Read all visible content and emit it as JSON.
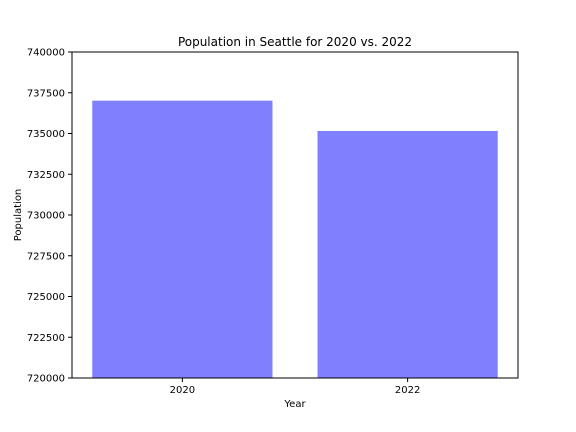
{
  "chart_data": {
    "type": "bar",
    "title": "Population in Seattle for 2020 vs. 2022",
    "xlabel": "Year",
    "ylabel": "Population",
    "categories": [
      "2020",
      "2022"
    ],
    "values": [
      737015,
      735157
    ],
    "ylim": [
      720000,
      740000
    ],
    "yticks": [
      720000,
      722500,
      725000,
      727500,
      730000,
      732500,
      735000,
      737500,
      740000
    ],
    "ytick_labels": [
      "720000",
      "722500",
      "725000",
      "727500",
      "730000",
      "732500",
      "735000",
      "737500",
      "740000"
    ],
    "bar_color": "#8080ff",
    "grid": false,
    "legend": "none"
  }
}
